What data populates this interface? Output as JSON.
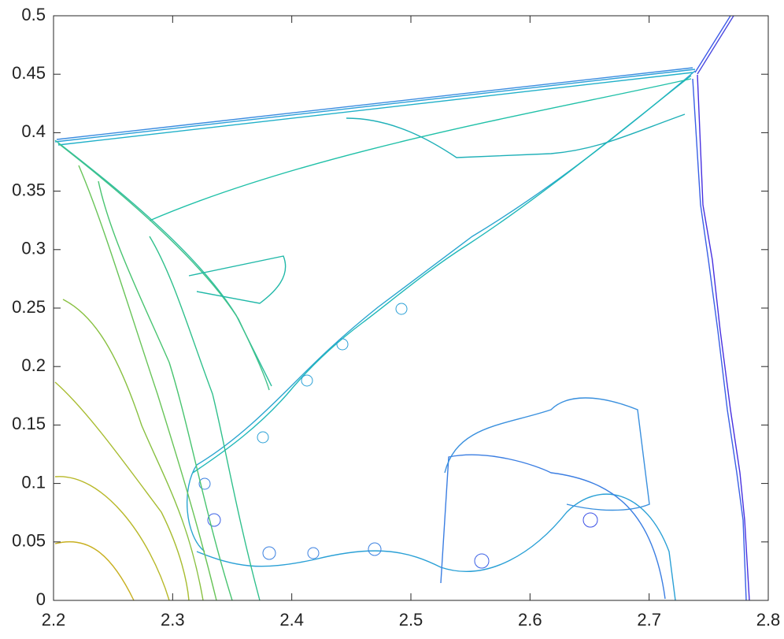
{
  "chart_data": {
    "type": "contour",
    "xlim": [
      2.2,
      2.8
    ],
    "ylim": [
      0,
      0.5
    ],
    "xticks": [
      2.2,
      2.3,
      2.4,
      2.5,
      2.6,
      2.7,
      2.8
    ],
    "yticks": [
      0,
      0.05,
      0.1,
      0.15,
      0.2,
      0.25,
      0.3,
      0.35,
      0.4,
      0.45,
      0.5
    ]
  }
}
